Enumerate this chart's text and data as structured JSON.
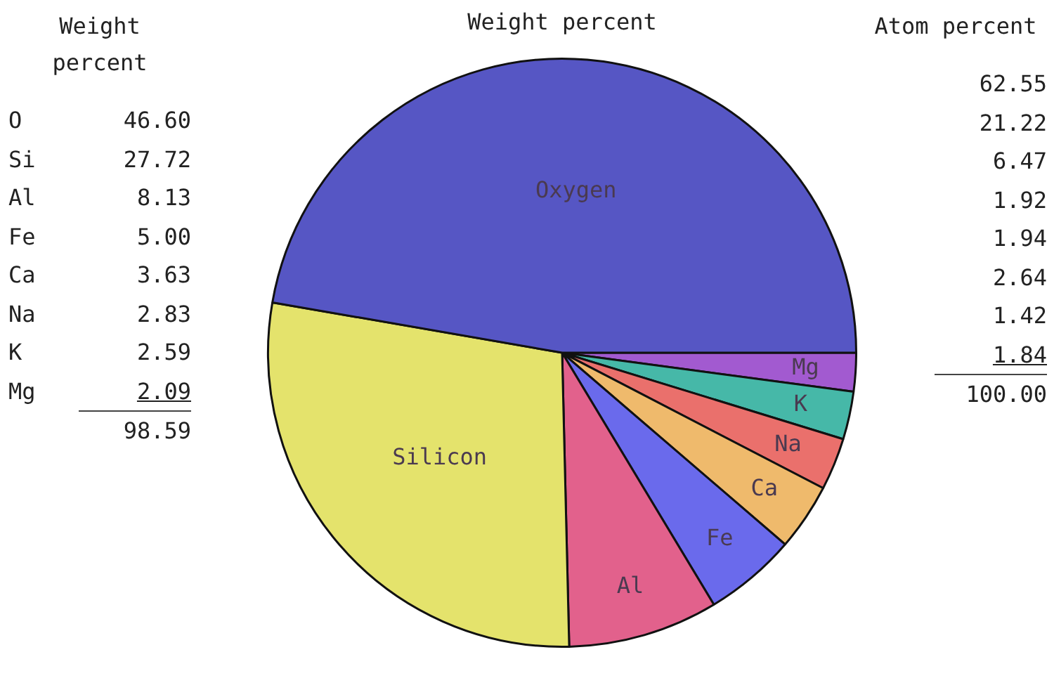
{
  "chart_data": [
    {
      "type": "other",
      "title": "Weight percent",
      "categories": [
        "O",
        "Si",
        "Al",
        "Fe",
        "Ca",
        "Na",
        "K",
        "Mg"
      ],
      "values": [
        46.6,
        27.72,
        8.13,
        5.0,
        3.63,
        2.83,
        2.59,
        2.09
      ],
      "value_labels": [
        "46.60",
        "27.72",
        "8.13",
        "5.00",
        "3.63",
        "2.83",
        "2.59",
        "2.09"
      ],
      "annotations": [
        "98.59"
      ]
    },
    {
      "type": "pie",
      "title": "Weight percent",
      "categories": [
        "Oxygen",
        "Silicon",
        "Al",
        "Fe",
        "Ca",
        "Na",
        "K",
        "Mg"
      ],
      "values": [
        46.6,
        27.72,
        8.13,
        5.0,
        3.63,
        2.83,
        2.59,
        2.09
      ],
      "colors": [
        "#5656c4",
        "#e4e36c",
        "#e2618c",
        "#6a6aec",
        "#efba6c",
        "#ea706c",
        "#46b8a8",
        "#a25ad0"
      ]
    },
    {
      "type": "other",
      "title": "Atom percent",
      "values": [
        62.55,
        21.22,
        6.47,
        1.92,
        1.94,
        2.64,
        1.42,
        1.84
      ],
      "value_labels": [
        "62.55",
        "21.22",
        "6.47",
        "1.92",
        "1.94",
        "2.64",
        "1.42",
        "1.84"
      ],
      "annotations": [
        "100.00"
      ]
    }
  ]
}
